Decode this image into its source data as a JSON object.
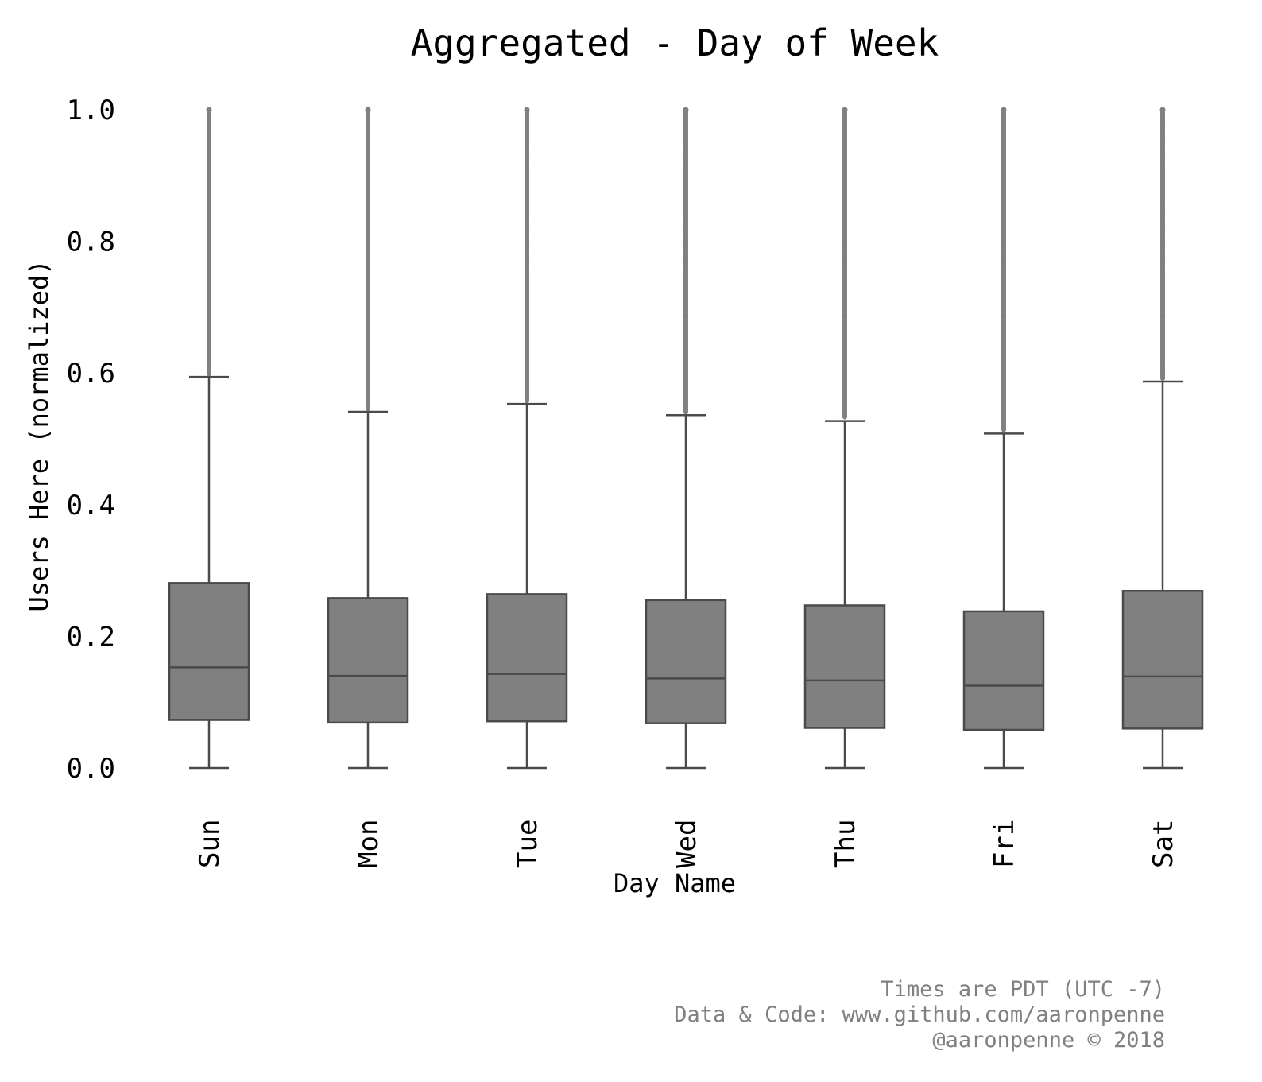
{
  "chart_data": {
    "type": "box",
    "title": "Aggregated - Day of Week",
    "xlabel": "Day Name",
    "ylabel": "Users Here (normalized)",
    "ylim": [
      0.0,
      1.0
    ],
    "yticks": [
      "0.0",
      "0.2",
      "0.4",
      "0.6",
      "0.8",
      "1.0"
    ],
    "grid": false,
    "categories": [
      "Sun",
      "Mon",
      "Tue",
      "Wed",
      "Thu",
      "Fri",
      "Sat"
    ],
    "boxes": [
      {
        "category": "Sun",
        "whisker_low": 0.0,
        "q1": 0.073,
        "median": 0.153,
        "q3": 0.281,
        "whisker_high": 0.594,
        "outliers_max": 1.0
      },
      {
        "category": "Mon",
        "whisker_low": 0.0,
        "q1": 0.069,
        "median": 0.14,
        "q3": 0.258,
        "whisker_high": 0.541,
        "outliers_max": 1.0
      },
      {
        "category": "Tue",
        "whisker_low": 0.0,
        "q1": 0.071,
        "median": 0.143,
        "q3": 0.264,
        "whisker_high": 0.553,
        "outliers_max": 1.0
      },
      {
        "category": "Wed",
        "whisker_low": 0.0,
        "q1": 0.068,
        "median": 0.136,
        "q3": 0.255,
        "whisker_high": 0.536,
        "outliers_max": 1.0
      },
      {
        "category": "Thu",
        "whisker_low": 0.0,
        "q1": 0.061,
        "median": 0.133,
        "q3": 0.247,
        "whisker_high": 0.527,
        "outliers_max": 1.0
      },
      {
        "category": "Fri",
        "whisker_low": 0.0,
        "q1": 0.058,
        "median": 0.125,
        "q3": 0.238,
        "whisker_high": 0.508,
        "outliers_max": 1.0
      },
      {
        "category": "Sat",
        "whisker_low": 0.0,
        "q1": 0.06,
        "median": 0.139,
        "q3": 0.269,
        "whisker_high": 0.587,
        "outliers_max": 1.0
      }
    ],
    "colors": {
      "box_fill": "#808080",
      "box_edge": "#4a4a4a",
      "outlier": "#808080"
    }
  },
  "footer": {
    "line1": "Times are PDT (UTC -7)",
    "line2": "Data & Code: www.github.com/aaronpenne",
    "line3": "@aaronpenne © 2018"
  }
}
